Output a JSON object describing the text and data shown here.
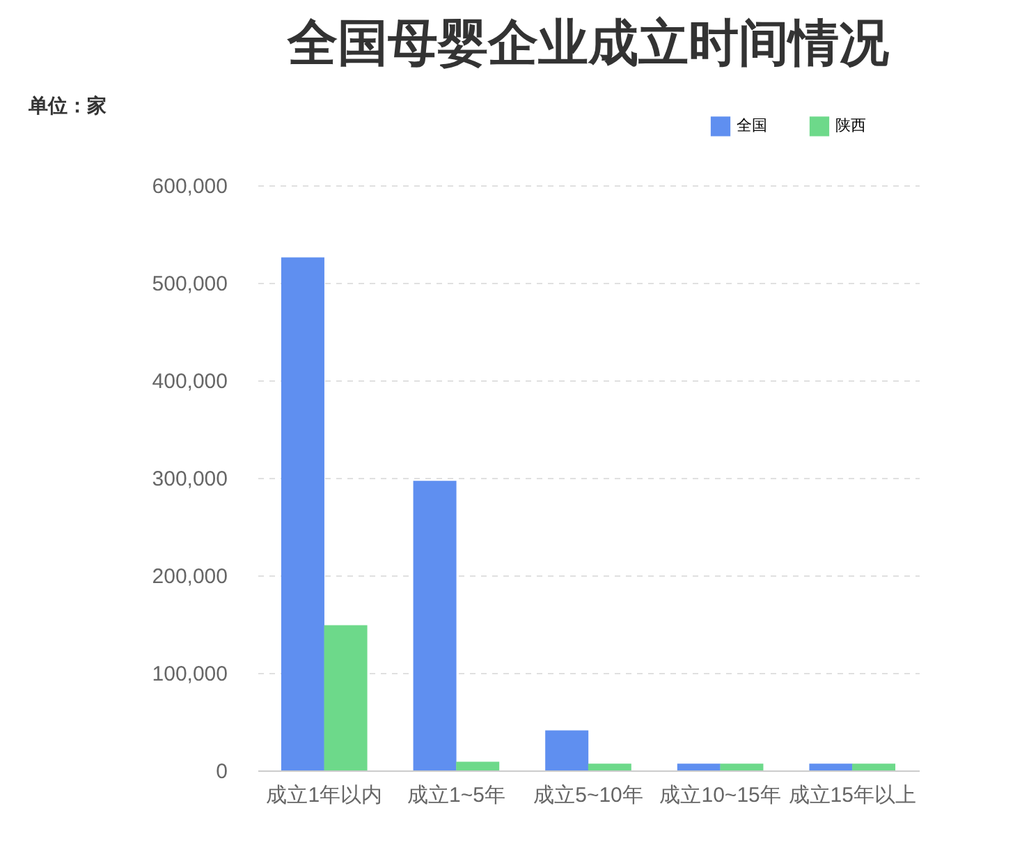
{
  "chart_data": {
    "type": "bar",
    "title": "全国母婴企业成立时间情况",
    "ylabel": "单位：家",
    "categories": [
      "成立1年以内",
      "成立1~5年",
      "成立5~10年",
      "成立10~15年",
      "成立15年以上"
    ],
    "series": [
      {
        "name": "全国",
        "color": "#5f8ff0",
        "values": [
          526000,
          297000,
          41000,
          7000,
          7000
        ]
      },
      {
        "name": "陕西",
        "color": "#6dd98a",
        "values": [
          149000,
          9000,
          7000,
          7000,
          7000
        ]
      }
    ],
    "ylim": [
      0,
      600000
    ],
    "yticks": [
      {
        "value": 0,
        "label": "0"
      },
      {
        "value": 100000,
        "label": "100,000"
      },
      {
        "value": 200000,
        "label": "200,000"
      },
      {
        "value": 300000,
        "label": "300,000"
      },
      {
        "value": 400000,
        "label": "400,000"
      },
      {
        "value": 500000,
        "label": "500,000"
      },
      {
        "value": 600000,
        "label": "600,000"
      }
    ],
    "grid": "y",
    "legend": "top right"
  }
}
